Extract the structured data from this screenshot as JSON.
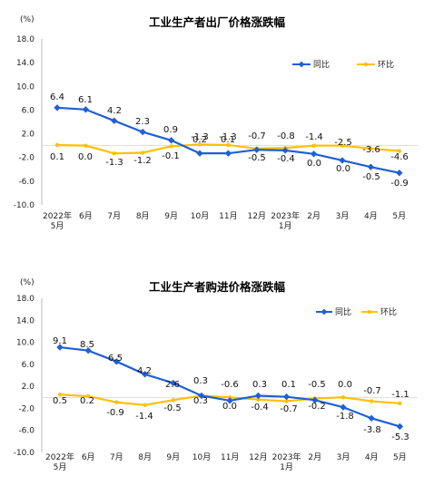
{
  "chart_data": [
    {
      "type": "line",
      "title": "工业生产者出厂价格涨跌幅",
      "unit": "(%)",
      "categories": [
        "2022年\n5月",
        "6月",
        "7月",
        "8月",
        "9月",
        "10月",
        "11月",
        "12月",
        "2023年\n1月",
        "2月",
        "3月",
        "4月",
        "5月"
      ],
      "ylim": [
        -10,
        18
      ],
      "yticks": [
        "18.0",
        "14.0",
        "10.0",
        "6.0",
        "2.0",
        "-2.0",
        "-6.0",
        "-10.0"
      ],
      "grid": false,
      "legend": "top-right",
      "series": [
        {
          "name": "同比",
          "color": "#1f5fd6",
          "values": [
            6.4,
            6.1,
            4.2,
            2.3,
            0.9,
            -1.3,
            -1.3,
            -0.7,
            -0.8,
            -1.4,
            -2.5,
            -3.6,
            -4.6
          ],
          "labels": [
            "6.4",
            "6.1",
            "4.2",
            "2.3",
            "0.9",
            "-1.3",
            "-1.3",
            "-0.7",
            "-0.8",
            "-1.4",
            "-2.5",
            "-3.6",
            "-4.6"
          ]
        },
        {
          "name": "环比",
          "color": "#ffc000",
          "values": [
            0.1,
            0.0,
            -1.3,
            -1.2,
            -0.1,
            0.2,
            0.1,
            -0.5,
            -0.4,
            0.0,
            0.0,
            -0.5,
            -0.9
          ],
          "labels": [
            "0.1",
            "0.0",
            "-1.3",
            "-1.2",
            "-0.1",
            "0.2",
            "0.1",
            "-0.5",
            "-0.4",
            "0.0",
            "0.0",
            "-0.5",
            "-0.9"
          ]
        }
      ]
    },
    {
      "type": "line",
      "title": "工业生产者购进价格涨跌幅",
      "unit": "(%)",
      "categories": [
        "2022年\n5月",
        "6月",
        "7月",
        "8月",
        "9月",
        "10月",
        "11月",
        "12月",
        "2023年\n1月",
        "2月",
        "3月",
        "4月",
        "5月"
      ],
      "ylim": [
        -10,
        18
      ],
      "yticks": [
        "18.0",
        "14.0",
        "10.0",
        "6.0",
        "2.0",
        "-2.0",
        "-6.0",
        "-10.0"
      ],
      "grid": false,
      "legend": "top-right",
      "series": [
        {
          "name": "同比",
          "color": "#1f5fd6",
          "values": [
            9.1,
            8.5,
            6.5,
            4.2,
            2.6,
            0.3,
            -0.6,
            0.3,
            0.1,
            -0.5,
            -1.8,
            -3.8,
            -5.3
          ],
          "labels": [
            "9.1",
            "8.5",
            "6.5",
            "4.2",
            "2.6",
            "0.3",
            "-0.6",
            "0.3",
            "0.1",
            "-0.5",
            "-1.8",
            "-3.8",
            "-5.3"
          ]
        },
        {
          "name": "环比",
          "color": "#ffc000",
          "values": [
            0.5,
            0.2,
            -0.9,
            -1.4,
            -0.5,
            0.3,
            0.0,
            -0.4,
            -0.7,
            -0.2,
            0.0,
            -0.7,
            -1.1
          ],
          "labels": [
            "0.5",
            "0.2",
            "-0.9",
            "-1.4",
            "-0.5",
            "0.3",
            "0.0",
            "-0.4",
            "-0.7",
            "-0.2",
            "0.0",
            "-0.7",
            "-1.1"
          ]
        }
      ]
    }
  ]
}
